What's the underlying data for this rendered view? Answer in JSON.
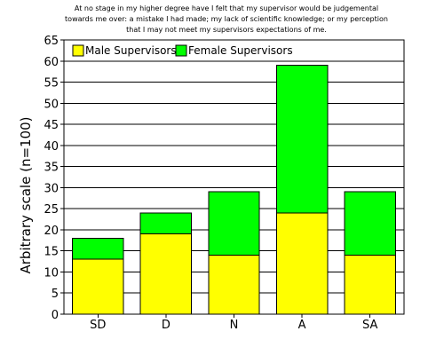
{
  "chart_data": {
    "type": "bar",
    "stacked": true,
    "title_lines": [
      "At no stage in my higher degree have I felt that my supervisor would be judgemental",
      "towards me over: a mistake I had made; my lack of scientific knowledge; or my perception",
      "that I may not meet my supervisors expectations of me."
    ],
    "xlabel": "",
    "ylabel": "Arbitrary scale (n=100)",
    "categories": [
      "SD",
      "D",
      "N",
      "A",
      "SA"
    ],
    "series": [
      {
        "name": "Male Supervisors",
        "values": [
          13,
          19,
          14,
          24,
          14
        ],
        "color": "#ffff00"
      },
      {
        "name": "Female Supervisors",
        "values": [
          5,
          5,
          15,
          35,
          15
        ],
        "color": "#00ff00"
      }
    ],
    "ylim": [
      0,
      65
    ],
    "yticks": [
      0,
      5,
      10,
      15,
      20,
      25,
      30,
      35,
      40,
      45,
      50,
      55,
      60,
      65
    ],
    "grid": true,
    "legend_position": "top-left"
  }
}
